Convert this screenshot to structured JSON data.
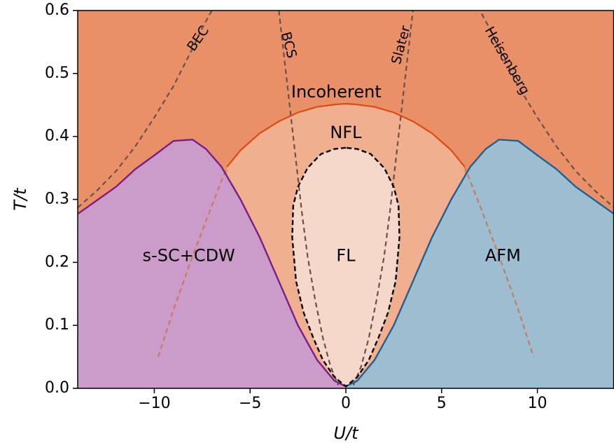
{
  "chart_data": {
    "type": "area",
    "title": "",
    "xlabel": "U/t",
    "ylabel": "T/t",
    "xlim": [
      -14,
      14
    ],
    "ylim": [
      0,
      0.6
    ],
    "grid": false,
    "x_ticks": [
      -10,
      -5,
      0,
      5,
      10
    ],
    "x_tick_labels": [
      "−10",
      "−5",
      "0",
      "5",
      "10"
    ],
    "y_ticks": [
      0.0,
      0.1,
      0.2,
      0.3,
      0.4,
      0.5,
      0.6
    ],
    "y_tick_labels": [
      "0.0",
      "0.1",
      "0.2",
      "0.3",
      "0.4",
      "0.5",
      "0.6"
    ],
    "colors": {
      "incoherent": "#e99068",
      "nfl": "#f0b090",
      "fl": "#f6d8cb",
      "ssc": "#cb9cc9",
      "afm": "#9dbdd1",
      "ssc_line": "#7b1d84",
      "afm_line": "#1f5f94",
      "nfl_line": "#dd4a10",
      "crossover_dashed": "#6b5048",
      "crossover_light": "#c87a5a"
    },
    "region_labels": [
      {
        "name": "Incoherent",
        "x": -0.5,
        "y": 0.47
      },
      {
        "name": "NFL",
        "x": 0,
        "y": 0.405
      },
      {
        "name": "FL",
        "x": 0,
        "y": 0.21
      },
      {
        "name": "s-SC+CDW",
        "x": -8.2,
        "y": 0.21
      },
      {
        "name": "AFM",
        "x": 8.2,
        "y": 0.21
      }
    ],
    "curve_labels": [
      {
        "name": "BEC",
        "x": -7.7,
        "y": 0.555
      },
      {
        "name": "BCS",
        "x": -3.0,
        "y": 0.545
      },
      {
        "name": "Slater",
        "x": 2.9,
        "y": 0.545
      },
      {
        "name": "Heisenberg",
        "x": 8.4,
        "y": 0.52
      }
    ],
    "series": [
      {
        "kind": "s-SC+CDW boundary",
        "x": [
          -14,
          -12,
          -11,
          -10,
          -9,
          -8.5,
          -8,
          -7.3,
          -6.5,
          -5.5,
          -4.5,
          -3.5,
          -2.5,
          -1.5,
          -0.6,
          0
        ],
        "y": [
          0.277,
          0.32,
          0.348,
          0.37,
          0.393,
          0.394,
          0.395,
          0.38,
          0.352,
          0.3,
          0.24,
          0.17,
          0.1,
          0.045,
          0.012,
          0.003
        ]
      },
      {
        "kind": "AFM boundary",
        "x": [
          0,
          0.6,
          1.5,
          2.5,
          3.5,
          4.5,
          5.5,
          6.5,
          7.3,
          8,
          8.5,
          9,
          10,
          11,
          12,
          14
        ],
        "y": [
          0.003,
          0.012,
          0.045,
          0.1,
          0.17,
          0.24,
          0.3,
          0.352,
          0.38,
          0.395,
          0.394,
          0.393,
          0.37,
          0.348,
          0.32,
          0.277
        ]
      },
      {
        "kind": "NFL boundary",
        "x": [
          -6.2,
          -5.5,
          -4.5,
          -3.5,
          -2.5,
          -1.5,
          -0.5,
          0,
          0.5,
          1.5,
          2.5,
          3.5,
          4.5,
          5.5,
          6.2
        ],
        "y": [
          0.352,
          0.378,
          0.405,
          0.424,
          0.438,
          0.447,
          0.451,
          0.452,
          0.451,
          0.447,
          0.438,
          0.424,
          0.405,
          0.378,
          0.352
        ]
      },
      {
        "kind": "FL boundary",
        "x": [
          0,
          -0.6,
          -1.3,
          -2.0,
          -2.5,
          -2.75,
          -2.8,
          -2.6,
          -2.2,
          -1.7,
          -1.2,
          -0.6,
          0,
          0.6,
          1.2,
          1.7,
          2.2,
          2.6,
          2.8,
          2.75,
          2.5,
          2.0,
          1.3,
          0.6,
          0
        ],
        "y": [
          0.382,
          0.38,
          0.372,
          0.35,
          0.32,
          0.29,
          0.24,
          0.17,
          0.12,
          0.08,
          0.045,
          0.018,
          0.003,
          0.018,
          0.045,
          0.08,
          0.12,
          0.17,
          0.24,
          0.29,
          0.32,
          0.35,
          0.372,
          0.38,
          0.382
        ]
      },
      {
        "kind": "BEC crossover",
        "x": [
          -14,
          -13,
          -12,
          -11,
          -10,
          -9,
          -8.5,
          -8,
          -7.5,
          -7,
          -6.8
        ],
        "y": [
          0.287,
          0.314,
          0.345,
          0.384,
          0.43,
          0.48,
          0.51,
          0.54,
          0.572,
          0.6,
          0.62
        ]
      },
      {
        "kind": "BEC crossover (low T)",
        "x": [
          -9.8,
          -9,
          -8,
          -7,
          -6.2
        ],
        "y": [
          0.05,
          0.125,
          0.21,
          0.29,
          0.352
        ]
      },
      {
        "kind": "BCS crossover",
        "x": [
          -3.5,
          -3.2,
          -2.9,
          -2.6,
          -2.3,
          -2.0,
          -1.6,
          -1.2,
          -0.8,
          -0.4
        ],
        "y": [
          0.6,
          0.52,
          0.44,
          0.36,
          0.28,
          0.21,
          0.14,
          0.08,
          0.035,
          0.005
        ]
      },
      {
        "kind": "Slater crossover",
        "x": [
          0.4,
          0.8,
          1.2,
          1.6,
          2.0,
          2.3,
          2.6,
          2.9,
          3.2,
          3.5
        ],
        "y": [
          0.005,
          0.035,
          0.08,
          0.14,
          0.21,
          0.28,
          0.36,
          0.44,
          0.52,
          0.6
        ]
      },
      {
        "kind": "Heisenberg crossover",
        "x": [
          6.8,
          7,
          7.5,
          8,
          8.5,
          9,
          10,
          11,
          12,
          13,
          14
        ],
        "y": [
          0.62,
          0.6,
          0.572,
          0.54,
          0.51,
          0.48,
          0.43,
          0.384,
          0.345,
          0.314,
          0.287
        ]
      },
      {
        "kind": "Heisenberg crossover (low T)",
        "x": [
          6.2,
          7,
          8,
          9,
          9.8
        ],
        "y": [
          0.352,
          0.29,
          0.21,
          0.125,
          0.05
        ]
      }
    ]
  }
}
